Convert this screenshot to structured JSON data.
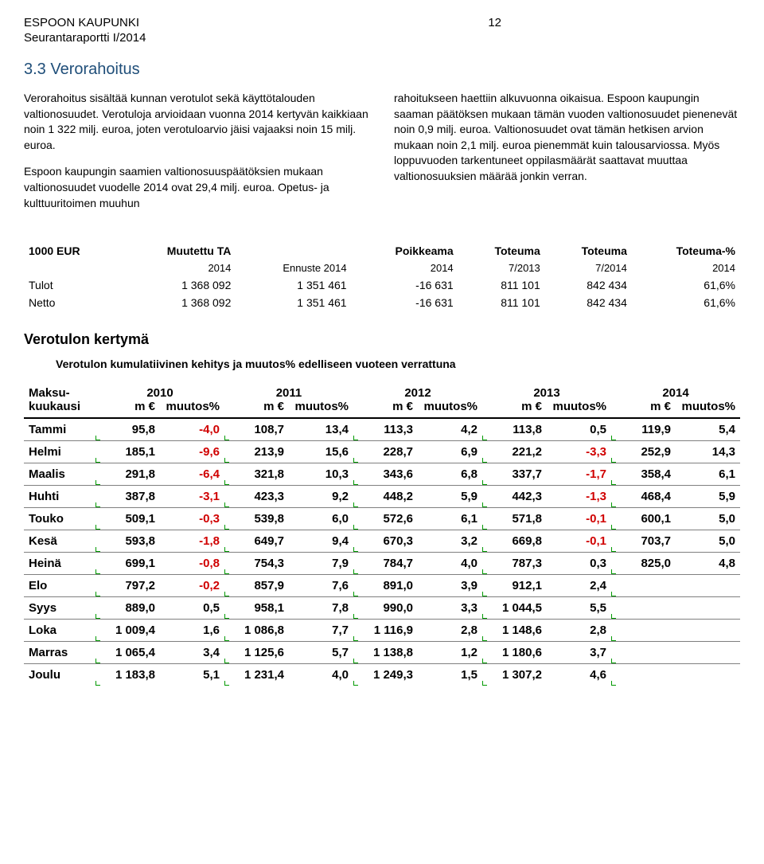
{
  "header": {
    "org": "ESPOON KAUPUNKI",
    "page": "12",
    "report": "Seurantaraportti I/2014"
  },
  "section": {
    "title": "3.3 Verorahoitus",
    "left_paras": [
      "Verorahoitus sisältää kunnan verotulot sekä käyttötalouden valtionosuudet. Verotuloja arvioidaan vuonna 2014 kertyvän kaikkiaan noin 1 322 milj. euroa, joten verotuloarvio jäisi vajaaksi noin 15 milj. euroa.",
      "Espoon kaupungin saamien valtionosuuspäätöksien mukaan valtionosuudet vuodelle 2014 ovat 29,4 milj. euroa. Opetus- ja kulttuuritoimen muuhun"
    ],
    "right_paras": [
      "rahoitukseen haettiin alkuvuonna oikaisua. Espoon kaupungin saaman päätöksen mukaan tämän vuoden valtionosuudet pienenevät noin 0,9 milj. euroa. Valtionosuudet ovat tämän hetkisen arvion mukaan noin 2,1 milj. euroa pienemmät kuin talousarviossa. Myös loppuvuoden tarkentuneet oppilasmäärät saattavat muuttaa valtionosuuksien määrää jonkin verran."
    ]
  },
  "summary_table": {
    "header1": [
      "1000 EUR",
      "Muutettu TA",
      "",
      "Poikkeama",
      "Toteuma",
      "Toteuma",
      "Toteuma-%"
    ],
    "header2": [
      "",
      "2014",
      "Ennuste 2014",
      "2014",
      "7/2013",
      "7/2014",
      "2014"
    ],
    "rows": [
      {
        "label": "Tulot",
        "vals": [
          "1 368 092",
          "1 351 461",
          "-16 631",
          "811 101",
          "842 434",
          "61,6%"
        ]
      },
      {
        "label": "Netto",
        "vals": [
          "1 368 092",
          "1 351 461",
          "-16 631",
          "811 101",
          "842 434",
          "61,6%"
        ]
      }
    ]
  },
  "verotulo": {
    "title": "Verotulon kertymä",
    "desc": "Verotulon kumulatiivinen kehitys ja muutos% edelliseen vuoteen verrattuna"
  },
  "monthly": {
    "col_label1": "Maksu-",
    "col_label2": "kuukausi",
    "sub_m": "m €",
    "sub_pct": "muutos%",
    "years": [
      "2010",
      "2011",
      "2012",
      "2013",
      "2014"
    ],
    "rows": [
      {
        "m": "Tammi",
        "d": [
          [
            "95,8",
            "-4,0"
          ],
          [
            "108,7",
            "13,4"
          ],
          [
            "113,3",
            "4,2"
          ],
          [
            "113,8",
            "0,5"
          ],
          [
            "119,9",
            "5,4"
          ]
        ]
      },
      {
        "m": "Helmi",
        "d": [
          [
            "185,1",
            "-9,6"
          ],
          [
            "213,9",
            "15,6"
          ],
          [
            "228,7",
            "6,9"
          ],
          [
            "221,2",
            "-3,3"
          ],
          [
            "252,9",
            "14,3"
          ]
        ]
      },
      {
        "m": "Maalis",
        "d": [
          [
            "291,8",
            "-6,4"
          ],
          [
            "321,8",
            "10,3"
          ],
          [
            "343,6",
            "6,8"
          ],
          [
            "337,7",
            "-1,7"
          ],
          [
            "358,4",
            "6,1"
          ]
        ]
      },
      {
        "m": "Huhti",
        "d": [
          [
            "387,8",
            "-3,1"
          ],
          [
            "423,3",
            "9,2"
          ],
          [
            "448,2",
            "5,9"
          ],
          [
            "442,3",
            "-1,3"
          ],
          [
            "468,4",
            "5,9"
          ]
        ]
      },
      {
        "m": "Touko",
        "d": [
          [
            "509,1",
            "-0,3"
          ],
          [
            "539,8",
            "6,0"
          ],
          [
            "572,6",
            "6,1"
          ],
          [
            "571,8",
            "-0,1"
          ],
          [
            "600,1",
            "5,0"
          ]
        ]
      },
      {
        "m": "Kesä",
        "d": [
          [
            "593,8",
            "-1,8"
          ],
          [
            "649,7",
            "9,4"
          ],
          [
            "670,3",
            "3,2"
          ],
          [
            "669,8",
            "-0,1"
          ],
          [
            "703,7",
            "5,0"
          ]
        ]
      },
      {
        "m": "Heinä",
        "d": [
          [
            "699,1",
            "-0,8"
          ],
          [
            "754,3",
            "7,9"
          ],
          [
            "784,7",
            "4,0"
          ],
          [
            "787,3",
            "0,3"
          ],
          [
            "825,0",
            "4,8"
          ]
        ]
      },
      {
        "m": "Elo",
        "d": [
          [
            "797,2",
            "-0,2"
          ],
          [
            "857,9",
            "7,6"
          ],
          [
            "891,0",
            "3,9"
          ],
          [
            "912,1",
            "2,4"
          ],
          [
            "",
            ""
          ]
        ]
      },
      {
        "m": "Syys",
        "d": [
          [
            "889,0",
            "0,5"
          ],
          [
            "958,1",
            "7,8"
          ],
          [
            "990,0",
            "3,3"
          ],
          [
            "1 044,5",
            "5,5"
          ],
          [
            "",
            ""
          ]
        ]
      },
      {
        "m": "Loka",
        "d": [
          [
            "1 009,4",
            "1,6"
          ],
          [
            "1 086,8",
            "7,7"
          ],
          [
            "1 116,9",
            "2,8"
          ],
          [
            "1 148,6",
            "2,8"
          ],
          [
            "",
            ""
          ]
        ]
      },
      {
        "m": "Marras",
        "d": [
          [
            "1 065,4",
            "3,4"
          ],
          [
            "1 125,6",
            "5,7"
          ],
          [
            "1 138,8",
            "1,2"
          ],
          [
            "1 180,6",
            "3,7"
          ],
          [
            "",
            ""
          ]
        ]
      },
      {
        "m": "Joulu",
        "d": [
          [
            "1 183,8",
            "5,1"
          ],
          [
            "1 231,4",
            "4,0"
          ],
          [
            "1 249,3",
            "1,5"
          ],
          [
            "1 307,2",
            "4,6"
          ],
          [
            "",
            ""
          ]
        ]
      }
    ]
  }
}
